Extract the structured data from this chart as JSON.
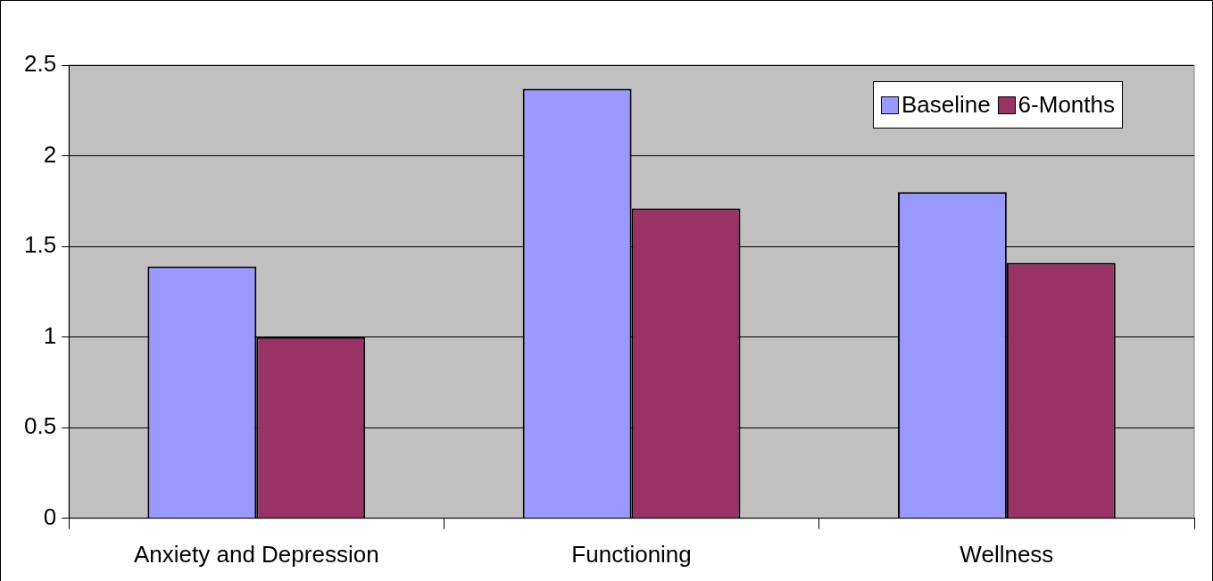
{
  "chart_data": {
    "type": "bar",
    "categories": [
      "Anxiety and Depression",
      "Functioning",
      "Wellness"
    ],
    "series": [
      {
        "name": "Baseline",
        "color": "#9999ff",
        "values": [
          1.39,
          2.37,
          1.8
        ]
      },
      {
        "name": "6-Months",
        "color": "#993366",
        "values": [
          1.0,
          1.71,
          1.41
        ]
      }
    ],
    "ylim": [
      0,
      2.5
    ],
    "yticks": [
      0,
      0.5,
      1,
      1.5,
      2,
      2.5
    ],
    "grid": "y",
    "legend": "top right"
  }
}
